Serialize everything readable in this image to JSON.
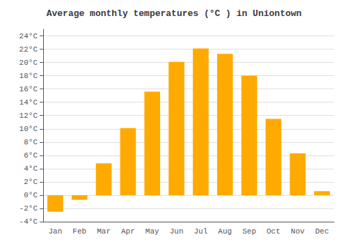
{
  "chart_data": {
    "type": "bar",
    "title": "Average monthly temperatures (°C ) in Uniontown",
    "categories": [
      "Jan",
      "Feb",
      "Mar",
      "Apr",
      "May",
      "Jun",
      "Jul",
      "Aug",
      "Sep",
      "Oct",
      "Nov",
      "Dec"
    ],
    "values": [
      -2.5,
      -0.7,
      4.8,
      10.1,
      15.6,
      20.1,
      22.1,
      21.3,
      18.0,
      11.5,
      6.3,
      0.6
    ],
    "color": "#FFAA00",
    "ylim": [
      -4,
      25
    ],
    "yticks": [
      {
        "value": -4,
        "label": "-4°C"
      },
      {
        "value": -2,
        "label": "-2°C"
      },
      {
        "value": 0,
        "label": "0°C"
      },
      {
        "value": 2,
        "label": "2°C"
      },
      {
        "value": 4,
        "label": "4°C"
      },
      {
        "value": 6,
        "label": "6°C"
      },
      {
        "value": 8,
        "label": "8°C"
      },
      {
        "value": 10,
        "label": "10°C"
      },
      {
        "value": 12,
        "label": "12°C"
      },
      {
        "value": 14,
        "label": "14°C"
      },
      {
        "value": 16,
        "label": "16°C"
      },
      {
        "value": 18,
        "label": "18°C"
      },
      {
        "value": 20,
        "label": "20°C"
      },
      {
        "value": 22,
        "label": "22°C"
      },
      {
        "value": 24,
        "label": "24°C"
      }
    ],
    "grid": true
  }
}
